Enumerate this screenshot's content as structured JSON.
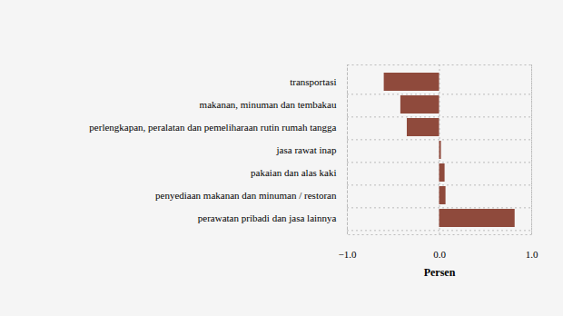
{
  "chart_data": {
    "type": "bar",
    "orientation": "horizontal",
    "categories": [
      "transportasi",
      "makanan, minuman dan tembakau",
      "perlengkapan, peralatan dan pemeliharaan rutin rumah tangga",
      "jasa rawat inap",
      "pakaian dan alas kaki",
      "penyediaan makanan dan minuman / restoran",
      "perawatan pribadi dan jasa lainnya"
    ],
    "values": [
      -0.6,
      -0.42,
      -0.35,
      0.02,
      0.06,
      0.07,
      0.82
    ],
    "color": "#8f4a3c",
    "x_label": "Persen",
    "xlim": [
      -1,
      1
    ],
    "xticks": [
      -1,
      0,
      1
    ],
    "grid": true
  }
}
